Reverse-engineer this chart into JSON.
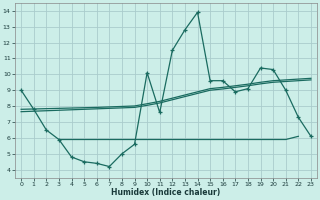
{
  "xlabel": "Humidex (Indice chaleur)",
  "bg_color": "#cceee8",
  "grid_color": "#aacccc",
  "line_color": "#1a6b60",
  "xlim": [
    -0.5,
    23.5
  ],
  "ylim": [
    3.5,
    14.5
  ],
  "xticks": [
    0,
    1,
    2,
    3,
    4,
    5,
    6,
    7,
    8,
    9,
    10,
    11,
    12,
    13,
    14,
    15,
    16,
    17,
    18,
    19,
    20,
    21,
    22,
    23
  ],
  "yticks": [
    4,
    5,
    6,
    7,
    8,
    9,
    10,
    11,
    12,
    13,
    14
  ],
  "series1_x": [
    0,
    1,
    2,
    3,
    4,
    5,
    6,
    7,
    8,
    9,
    10,
    11,
    12,
    13,
    14,
    15,
    16,
    17,
    18,
    19,
    20,
    21,
    22,
    23
  ],
  "series1_y": [
    9.0,
    7.8,
    6.5,
    5.9,
    4.8,
    4.5,
    4.4,
    4.2,
    5.0,
    5.6,
    10.1,
    7.6,
    11.5,
    12.8,
    13.9,
    9.6,
    9.6,
    8.9,
    9.1,
    10.4,
    10.3,
    9.0,
    7.3,
    6.1
  ],
  "series2_x": [
    3,
    4,
    5,
    6,
    7,
    8,
    9,
    10,
    11,
    12,
    13,
    14,
    15,
    16,
    17,
    18,
    19,
    20,
    21,
    22
  ],
  "series2_y": [
    5.9,
    5.9,
    5.9,
    5.9,
    5.9,
    5.9,
    5.9,
    5.9,
    5.9,
    5.9,
    5.9,
    5.9,
    5.9,
    5.9,
    5.9,
    5.9,
    5.9,
    5.9,
    5.9,
    6.1
  ],
  "series3_x": [
    0,
    1,
    2,
    3,
    4,
    5,
    6,
    7,
    8,
    9,
    10,
    11,
    12,
    13,
    14,
    15,
    16,
    17,
    18,
    19,
    20,
    21,
    22,
    23
  ],
  "series3_y": [
    7.8,
    7.82,
    7.84,
    7.86,
    7.88,
    7.9,
    7.92,
    7.95,
    7.98,
    8.01,
    8.15,
    8.3,
    8.5,
    8.7,
    8.9,
    9.1,
    9.18,
    9.28,
    9.38,
    9.5,
    9.6,
    9.65,
    9.7,
    9.75
  ],
  "series4_x": [
    0,
    1,
    2,
    3,
    4,
    5,
    6,
    7,
    8,
    9,
    10,
    11,
    12,
    13,
    14,
    15,
    16,
    17,
    18,
    19,
    20,
    21,
    22,
    23
  ],
  "series4_y": [
    7.65,
    7.68,
    7.71,
    7.74,
    7.77,
    7.8,
    7.83,
    7.86,
    7.89,
    7.92,
    8.05,
    8.2,
    8.4,
    8.6,
    8.8,
    9.0,
    9.08,
    9.18,
    9.28,
    9.4,
    9.5,
    9.55,
    9.6,
    9.65
  ]
}
